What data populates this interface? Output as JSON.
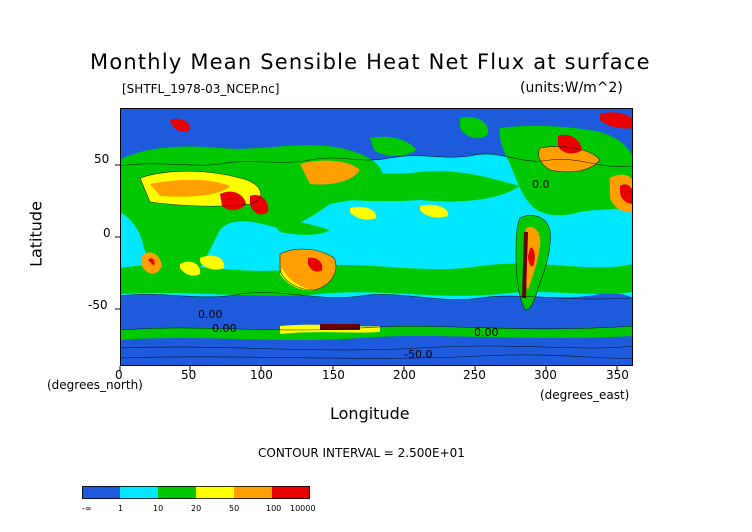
{
  "header": {
    "title": "Monthly Mean Sensible Heat Net Flux at surface",
    "file_label": "[SHTFL_1978-03_NCEP.nc]",
    "units_label": "(units:W/m^2)"
  },
  "axes": {
    "xlabel": "Longitude",
    "ylabel": "Latitude",
    "x_units": "(degrees_east)",
    "y_units": "(degrees_north)",
    "x_ticks": [
      "0",
      "50",
      "100",
      "150",
      "200",
      "250",
      "300",
      "350"
    ],
    "y_ticks": [
      "50",
      "0",
      "-50"
    ],
    "xlim": [
      0,
      360
    ],
    "ylim": [
      -90,
      90
    ]
  },
  "contour_interval": "CONTOUR INTERVAL = 2.500E+01",
  "contour_labels": [
    "0.0",
    "0.00",
    "0.00",
    "0.00",
    "-50.0"
  ],
  "colorbar": {
    "tick_labels": [
      "-∞",
      "1",
      "10",
      "20",
      "50",
      "100",
      "10000"
    ],
    "colors": [
      "#1e5adc",
      "#00e8ff",
      "#00c800",
      "#ffff00",
      "#ffa000",
      "#e80000"
    ]
  },
  "colors": {
    "ocean_low": "#1e5adc",
    "ocean_mid": "#00e8ff",
    "green": "#00c800",
    "yellow": "#ffff00",
    "orange": "#ffa000",
    "red": "#e80000"
  }
}
